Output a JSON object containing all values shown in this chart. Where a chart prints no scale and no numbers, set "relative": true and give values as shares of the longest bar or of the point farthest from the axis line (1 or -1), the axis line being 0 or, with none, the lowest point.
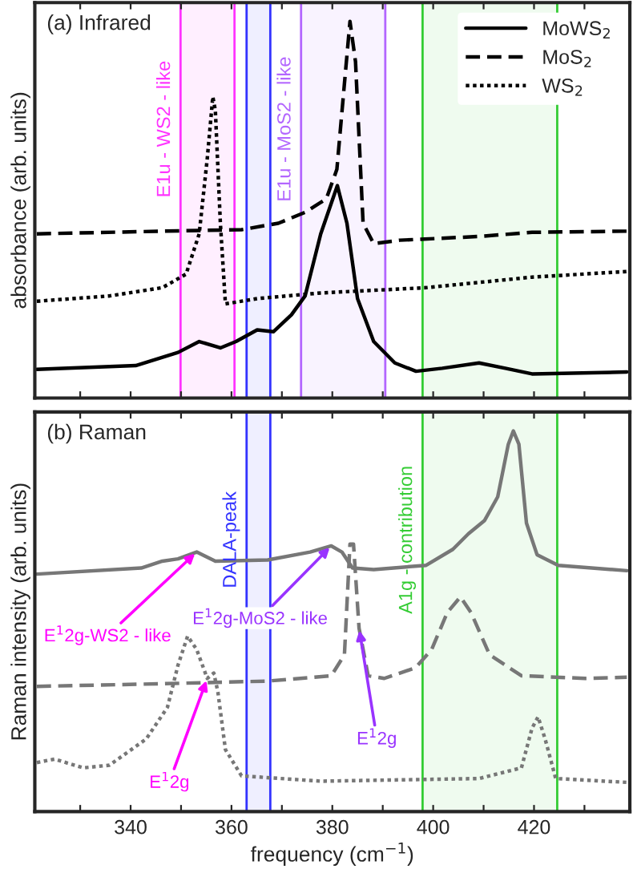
{
  "chart_data": [
    {
      "type": "line",
      "title": "(a) Infrared",
      "ylabel": "absorbance (arb. units)",
      "relative": true,
      "xlim": [
        321,
        439
      ],
      "xticks": [
        {
          "value": 330,
          "label": null
        },
        340,
        {
          "value": 350,
          "label": null
        },
        360,
        {
          "value": 370,
          "label": null
        },
        380,
        {
          "value": 390,
          "label": null
        },
        400,
        {
          "value": 410,
          "label": null
        },
        420,
        {
          "value": 430,
          "label": null
        }
      ],
      "tick_labels": false,
      "legend": "top right",
      "grid": false,
      "series": [
        {
          "name": "MoWS$_{2}$",
          "color": "#000000",
          "line_style": "solid",
          "x": [
            321.4,
            341.0,
            349.4,
            353.6,
            357.8,
            360.9,
            365.1,
            368.3,
            371.9,
            374.6,
            377.7,
            381.0,
            382.9,
            385.0,
            388.2,
            392.4,
            396.6,
            401.8,
            409.1,
            414.3,
            419.6,
            438.4
          ],
          "values": [
            0.076,
            0.086,
            0.121,
            0.15,
            0.133,
            0.15,
            0.181,
            0.176,
            0.221,
            0.271,
            0.436,
            0.564,
            0.464,
            0.264,
            0.15,
            0.093,
            0.071,
            0.079,
            0.093,
            0.079,
            0.064,
            0.069
          ]
        },
        {
          "name": "MoS$_{2}$",
          "color": "#000000",
          "line_style": "dashed",
          "x": [
            321.4,
            346.3,
            362.0,
            369.3,
            374.6,
            378.8,
            380.9,
            382.5,
            383.5,
            384.6,
            386.1,
            388.2,
            393.4,
            409.1,
            419.6,
            438.4
          ],
          "values": [
            0.436,
            0.443,
            0.447,
            0.464,
            0.493,
            0.529,
            0.607,
            0.85,
            1.0,
            0.893,
            0.464,
            0.41,
            0.419,
            0.429,
            0.44,
            0.443
          ]
        },
        {
          "name": "WS$_{2}$",
          "color": "#000000",
          "line_style": "dotted",
          "x": [
            321.4,
            335.8,
            346.3,
            351.0,
            353.6,
            355.2,
            356.3,
            356.8,
            357.8,
            358.8,
            365.1,
            377.7,
            398.6,
            419.6,
            438.4
          ],
          "values": [
            0.257,
            0.271,
            0.293,
            0.329,
            0.436,
            0.636,
            0.8,
            0.764,
            0.464,
            0.25,
            0.264,
            0.279,
            0.293,
            0.321,
            0.336
          ]
        }
      ],
      "bands": [
        {
          "axis": "x",
          "from": 349.9,
          "to": 360.6,
          "label": "E1u - WS2 - like",
          "color": "#ff33ff"
        },
        {
          "axis": "x",
          "from": 363.0,
          "to": 367.7,
          "label": null,
          "color": "#3333ff"
        },
        {
          "axis": "x",
          "from": 373.8,
          "to": 390.5,
          "label": "E1u - MoS2 - like",
          "color": "#b366ff"
        },
        {
          "axis": "x",
          "from": 397.9,
          "to": 424.6,
          "label": null,
          "color": "#33cc33"
        }
      ]
    },
    {
      "type": "line",
      "title": "(b) Raman",
      "ylabel": "Raman intensity (arb. units)",
      "xlabel": "frequency (cm$^{−1}$)",
      "relative": true,
      "xlim": [
        321,
        439
      ],
      "xticks": [
        {
          "value": 330,
          "label": null
        },
        340,
        {
          "value": 350,
          "label": null
        },
        360,
        {
          "value": 370,
          "label": null
        },
        380,
        {
          "value": 390,
          "label": null
        },
        400,
        {
          "value": 410,
          "label": null
        },
        420,
        {
          "value": 430,
          "label": null
        }
      ],
      "tick_labels": "x",
      "legend": false,
      "grid": false,
      "series": [
        {
          "color": "#777777",
          "line_style": "solid",
          "x": [
            321.4,
            342.1,
            346.3,
            349.4,
            353.1,
            356.8,
            367.2,
            375.6,
            379.8,
            381.9,
            384.0,
            388.2,
            398.6,
            403.9,
            407.0,
            410.2,
            412.8,
            414.9,
            415.9,
            417.0,
            418.5,
            420.6,
            424.8,
            438.4
          ],
          "values": [
            0.624,
            0.64,
            0.658,
            0.664,
            0.682,
            0.658,
            0.661,
            0.682,
            0.698,
            0.682,
            0.64,
            0.636,
            0.647,
            0.689,
            0.73,
            0.765,
            0.827,
            0.965,
            1.0,
            0.965,
            0.758,
            0.675,
            0.647,
            0.633
          ]
        },
        {
          "color": "#777777",
          "line_style": "dashed",
          "x": [
            321.4,
            346.3,
            367.2,
            379.8,
            382.4,
            383.5,
            384.2,
            385.3,
            387.1,
            390.3,
            396.5,
            399.7,
            402.8,
            405.4,
            407.5,
            411.2,
            417.5,
            430.1,
            438.4
          ],
          "values": [
            0.329,
            0.336,
            0.343,
            0.357,
            0.412,
            0.703,
            0.703,
            0.482,
            0.357,
            0.35,
            0.378,
            0.426,
            0.523,
            0.564,
            0.523,
            0.412,
            0.357,
            0.35,
            0.353
          ]
        },
        {
          "color": "#777777",
          "line_style": "dotted",
          "x": [
            321.4,
            324.9,
            330.6,
            335.8,
            343.1,
            347.3,
            349.4,
            351.3,
            353.1,
            355.2,
            356.5,
            357.3,
            358.8,
            362.0,
            377.7,
            409.1,
            417.5,
            419.6,
            420.8,
            422.2,
            424.3,
            438.4
          ],
          "values": [
            0.129,
            0.138,
            0.115,
            0.122,
            0.191,
            0.274,
            0.385,
            0.461,
            0.426,
            0.35,
            0.364,
            0.315,
            0.163,
            0.094,
            0.08,
            0.087,
            0.115,
            0.219,
            0.249,
            0.191,
            0.087,
            0.077
          ]
        }
      ],
      "bands": [
        {
          "axis": "x",
          "from": 363.0,
          "to": 367.7,
          "label": "DALA-peak",
          "color": "#3333ff"
        },
        {
          "axis": "x",
          "from": 397.9,
          "to": 424.6,
          "label": "A1g - contribution",
          "color": "#33cc33"
        }
      ],
      "annotations": [
        {
          "text": "E$^{1}$2g-WS2 - like",
          "x": 353.1,
          "y": 0.682
        },
        {
          "text": "E$^{1}$2g-MoS2 - like",
          "x": 379.8,
          "y": 0.698
        },
        {
          "text": "E$^{1}$2g",
          "x": 385.3,
          "y": 0.482
        },
        {
          "text": "E$^{1}$2g",
          "x": 355.2,
          "y": 0.35
        }
      ]
    }
  ]
}
